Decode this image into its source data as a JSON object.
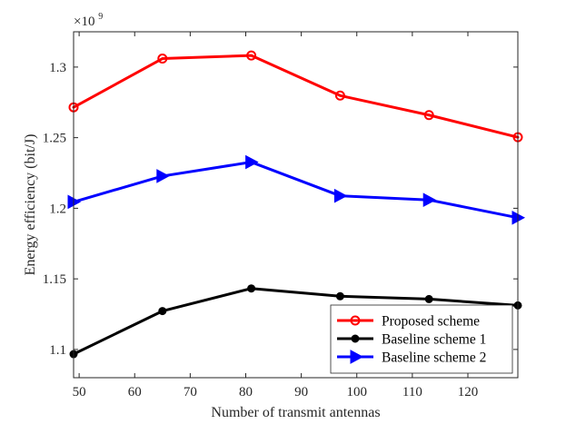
{
  "chart_data": {
    "type": "line",
    "title": "",
    "xlabel": "Number of transmit antennas",
    "ylabel": "Energy efficiency (bit/J)",
    "xlim": [
      49,
      129
    ],
    "ylim": [
      1.08,
      1.325
    ],
    "x_ticks": [
      50,
      60,
      70,
      80,
      90,
      100,
      110,
      120
    ],
    "y_ticks": [
      1.1,
      1.15,
      1.2,
      1.25,
      1.3
    ],
    "x_tick_labels": [
      "50",
      "60",
      "70",
      "80",
      "90",
      "100",
      "110",
      "120"
    ],
    "y_tick_labels": [
      "1.1",
      "1.15",
      "1.2",
      "1.25",
      "1.3"
    ],
    "y_multiplier": {
      "base": "×10",
      "exponent": "9"
    },
    "x": [
      49,
      65,
      81,
      97,
      113,
      129
    ],
    "series": [
      {
        "name": "Proposed scheme",
        "color": "#ff0000",
        "marker": "circle-open",
        "values": [
          1.2715,
          1.306,
          1.3082,
          1.2798,
          1.266,
          1.2503
        ]
      },
      {
        "name": "Baseline scheme 1",
        "color": "#000000",
        "marker": "circle-filled",
        "values": [
          1.0967,
          1.1272,
          1.1432,
          1.1377,
          1.1357,
          1.1312
        ]
      },
      {
        "name": "Baseline scheme 2",
        "color": "#0000ff",
        "marker": "triangle-right",
        "values": [
          1.2045,
          1.2228,
          1.2327,
          1.2088,
          1.2059,
          1.1933
        ]
      }
    ],
    "legend_position": "bottom-right",
    "grid": false
  }
}
